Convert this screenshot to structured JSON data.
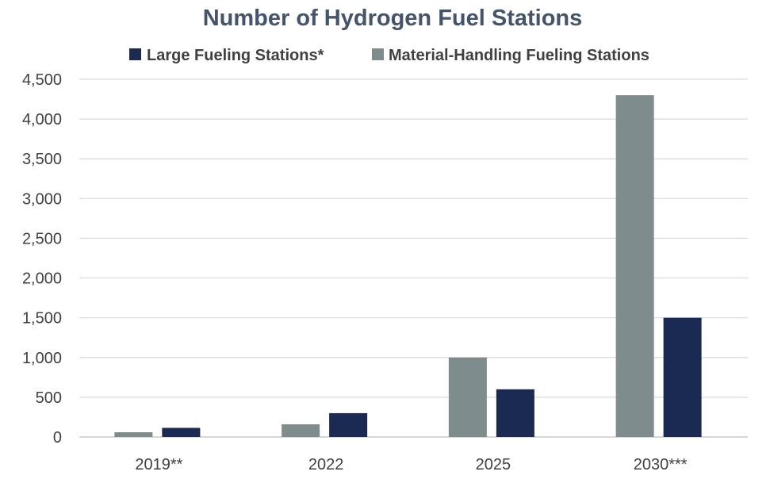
{
  "chart_data": {
    "type": "bar",
    "title": "Number of Hydrogen Fuel Stations",
    "categories": [
      "2019**",
      "2022",
      "2025",
      "2030***"
    ],
    "series": [
      {
        "name": "Material-Handling Fueling Stations",
        "color": "#7f8c8d",
        "values": [
          60,
          160,
          1000,
          4300
        ]
      },
      {
        "name": "Large Fueling Stations*",
        "color": "#1b2a52",
        "values": [
          115,
          300,
          600,
          1500
        ]
      }
    ],
    "legend_order": [
      1,
      0
    ],
    "ylim": [
      0,
      4500
    ],
    "yticks": [
      0,
      500,
      1000,
      1500,
      2000,
      2500,
      3000,
      3500,
      4000,
      4500
    ],
    "ytick_labels": [
      "0",
      "500",
      "1,000",
      "1,500",
      "2,000",
      "2,500",
      "3,000",
      "3,500",
      "4,000",
      "4,500"
    ],
    "grid": true,
    "legend_position": "top-center",
    "xlabel": "",
    "ylabel": ""
  }
}
